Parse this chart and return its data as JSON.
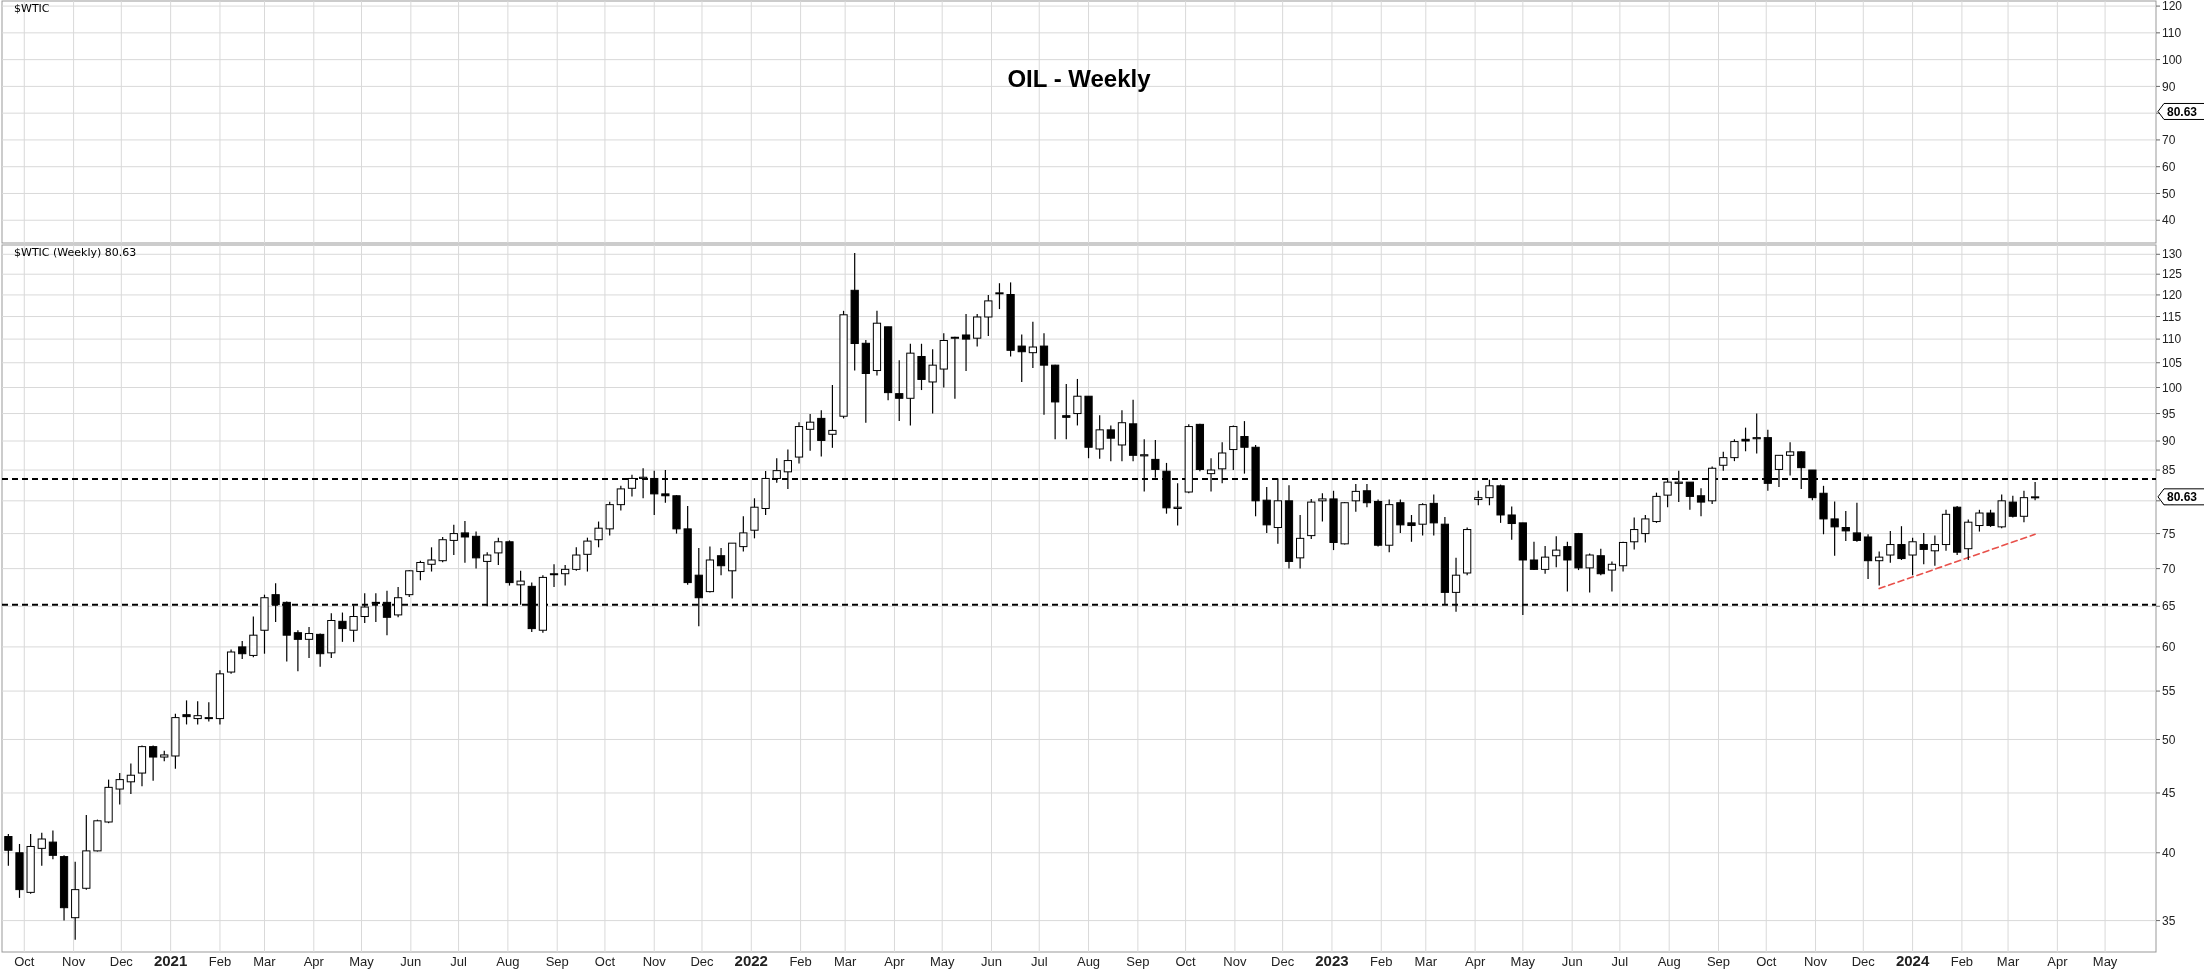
{
  "chart_data": [
    {
      "type": "line",
      "title": "OIL - Weekly",
      "annotations": [
        "$WTIC",
        "80.63"
      ],
      "ylim": [
        31.5,
        121.9
      ],
      "yticks": [
        40,
        50,
        60,
        70,
        {
          "value": 80,
          "label": null
        },
        90,
        100,
        110,
        120
      ],
      "xlim": [
        "2020-09-17",
        "2024-06-02"
      ],
      "xticks": [
        {
          "value": "2020-10-01",
          "label": null
        },
        {
          "value": "2020-11-01",
          "label": null
        },
        {
          "value": "2020-12-01",
          "label": null
        },
        {
          "value": "2021-01-01",
          "label": null
        },
        {
          "value": "2021-02-01",
          "label": null
        },
        {
          "value": "2021-03-01",
          "label": null
        },
        {
          "value": "2021-04-01",
          "label": null
        },
        {
          "value": "2021-05-01",
          "label": null
        },
        {
          "value": "2021-06-01",
          "label": null
        },
        {
          "value": "2021-07-01",
          "label": null
        },
        {
          "value": "2021-08-01",
          "label": null
        },
        {
          "value": "2021-09-01",
          "label": null
        },
        {
          "value": "2021-10-01",
          "label": null
        },
        {
          "value": "2021-11-01",
          "label": null
        },
        {
          "value": "2021-12-01",
          "label": null
        },
        {
          "value": "2022-01-01",
          "label": null
        },
        {
          "value": "2022-02-01",
          "label": null
        },
        {
          "value": "2022-03-01",
          "label": null
        },
        {
          "value": "2022-04-01",
          "label": null
        },
        {
          "value": "2022-05-01",
          "label": null
        },
        {
          "value": "2022-06-01",
          "label": null
        },
        {
          "value": "2022-07-01",
          "label": null
        },
        {
          "value": "2022-08-01",
          "label": null
        },
        {
          "value": "2022-09-01",
          "label": null
        },
        {
          "value": "2022-10-01",
          "label": null
        },
        {
          "value": "2022-11-01",
          "label": null
        },
        {
          "value": "2022-12-01",
          "label": null
        },
        {
          "value": "2023-01-01",
          "label": null
        },
        {
          "value": "2023-02-01",
          "label": null
        },
        {
          "value": "2023-03-01",
          "label": null
        },
        {
          "value": "2023-04-01",
          "label": null
        },
        {
          "value": "2023-05-01",
          "label": null
        },
        {
          "value": "2023-06-01",
          "label": null
        },
        {
          "value": "2023-07-01",
          "label": null
        },
        {
          "value": "2023-08-01",
          "label": null
        },
        {
          "value": "2023-09-01",
          "label": null
        },
        {
          "value": "2023-10-01",
          "label": null
        },
        {
          "value": "2023-11-01",
          "label": null
        },
        {
          "value": "2023-12-01",
          "label": null
        },
        {
          "value": "2024-01-01",
          "label": null
        },
        {
          "value": "2024-02-01",
          "label": null
        },
        {
          "value": "2024-03-01",
          "label": null
        },
        {
          "value": "2024-04-01",
          "label": null
        },
        {
          "value": "2024-05-01",
          "label": null
        }
      ],
      "tick_labels": "y",
      "grid": true
    },
    {
      "type": "candlestick",
      "log": true,
      "grid": true,
      "annotations": [
        "$WTIC (Weekly) 80.63",
        "80.63"
      ],
      "ylim": [
        32.9,
        132.4
      ],
      "yticks": [
        35,
        40,
        45,
        50,
        55,
        60,
        65,
        70,
        75,
        80,
        85,
        90,
        95,
        100,
        105,
        110,
        115,
        120,
        125,
        130
      ],
      "xlim": [
        "2020-09-17",
        "2024-06-02"
      ],
      "xticks": [
        {
          "value": "2020-10-01",
          "label": "Oct"
        },
        {
          "value": "2020-11-01",
          "label": "Nov"
        },
        {
          "value": "2020-12-01",
          "label": "Dec"
        },
        {
          "value": "2021-01-01",
          "label": "2021"
        },
        {
          "value": "2021-02-01",
          "label": "Feb"
        },
        {
          "value": "2021-03-01",
          "label": "Mar"
        },
        {
          "value": "2021-04-01",
          "label": "Apr"
        },
        {
          "value": "2021-05-01",
          "label": "May"
        },
        {
          "value": "2021-06-01",
          "label": "Jun"
        },
        {
          "value": "2021-07-01",
          "label": "Jul"
        },
        {
          "value": "2021-08-01",
          "label": "Aug"
        },
        {
          "value": "2021-09-01",
          "label": "Sep"
        },
        {
          "value": "2021-10-01",
          "label": "Oct"
        },
        {
          "value": "2021-11-01",
          "label": "Nov"
        },
        {
          "value": "2021-12-01",
          "label": "Dec"
        },
        {
          "value": "2022-01-01",
          "label": "2022"
        },
        {
          "value": "2022-02-01",
          "label": "Feb"
        },
        {
          "value": "2022-03-01",
          "label": "Mar"
        },
        {
          "value": "2022-04-01",
          "label": "Apr"
        },
        {
          "value": "2022-05-01",
          "label": "May"
        },
        {
          "value": "2022-06-01",
          "label": "Jun"
        },
        {
          "value": "2022-07-01",
          "label": "Jul"
        },
        {
          "value": "2022-08-01",
          "label": "Aug"
        },
        {
          "value": "2022-09-01",
          "label": "Sep"
        },
        {
          "value": "2022-10-01",
          "label": "Oct"
        },
        {
          "value": "2022-11-01",
          "label": "Nov"
        },
        {
          "value": "2022-12-01",
          "label": "Dec"
        },
        {
          "value": "2023-01-01",
          "label": "2023"
        },
        {
          "value": "2023-02-01",
          "label": "Feb"
        },
        {
          "value": "2023-03-01",
          "label": "Mar"
        },
        {
          "value": "2023-04-01",
          "label": "Apr"
        },
        {
          "value": "2023-05-01",
          "label": "May"
        },
        {
          "value": "2023-06-01",
          "label": "Jun"
        },
        {
          "value": "2023-07-01",
          "label": "Jul"
        },
        {
          "value": "2023-08-01",
          "label": "Aug"
        },
        {
          "value": "2023-09-01",
          "label": "Sep"
        },
        {
          "value": "2023-10-01",
          "label": "Oct"
        },
        {
          "value": "2023-11-01",
          "label": "Nov"
        },
        {
          "value": "2023-12-01",
          "label": "Dec"
        },
        {
          "value": "2024-01-01",
          "label": "2024"
        },
        {
          "value": "2024-02-01",
          "label": "Feb"
        },
        {
          "value": "2024-03-01",
          "label": "Mar"
        },
        {
          "value": "2024-04-01",
          "label": "Apr"
        },
        {
          "value": "2024-05-01",
          "label": "May"
        }
      ],
      "ref_lines": [
        {
          "axis": "y",
          "value": 83.5,
          "color": "#000000",
          "line_style": "dashed"
        },
        {
          "axis": "y",
          "value": 65.2,
          "color": "#000000",
          "line_style": "dashed"
        }
      ],
      "series": [
        {
          "type": "line",
          "x": [
            "2023-12-11",
            "2024-03-18"
          ],
          "values": [
            67.3,
            74.9
          ],
          "color": "#e8504a",
          "line_style": "dashed"
        }
      ],
      "x": [
        "2020-09-21",
        "2020-09-28",
        "2020-10-05",
        "2020-10-12",
        "2020-10-19",
        "2020-10-26",
        "2020-11-02",
        "2020-11-09",
        "2020-11-16",
        "2020-11-23",
        "2020-11-30",
        "2020-12-07",
        "2020-12-14",
        "2020-12-21",
        "2020-12-28",
        "2021-01-04",
        "2021-01-11",
        "2021-01-18",
        "2021-01-25",
        "2021-02-01",
        "2021-02-08",
        "2021-02-15",
        "2021-02-22",
        "2021-03-01",
        "2021-03-08",
        "2021-03-15",
        "2021-03-22",
        "2021-03-29",
        "2021-04-05",
        "2021-04-12",
        "2021-04-19",
        "2021-04-26",
        "2021-05-03",
        "2021-05-10",
        "2021-05-17",
        "2021-05-24",
        "2021-05-31",
        "2021-06-07",
        "2021-06-14",
        "2021-06-21",
        "2021-06-28",
        "2021-07-05",
        "2021-07-12",
        "2021-07-19",
        "2021-07-26",
        "2021-08-02",
        "2021-08-09",
        "2021-08-16",
        "2021-08-23",
        "2021-08-30",
        "2021-09-06",
        "2021-09-13",
        "2021-09-20",
        "2021-09-27",
        "2021-10-04",
        "2021-10-11",
        "2021-10-18",
        "2021-10-25",
        "2021-11-01",
        "2021-11-08",
        "2021-11-15",
        "2021-11-22",
        "2021-11-29",
        "2021-12-06",
        "2021-12-13",
        "2021-12-20",
        "2021-12-27",
        "2022-01-03",
        "2022-01-10",
        "2022-01-17",
        "2022-01-24",
        "2022-01-31",
        "2022-02-07",
        "2022-02-14",
        "2022-02-21",
        "2022-02-28",
        "2022-03-07",
        "2022-03-14",
        "2022-03-21",
        "2022-03-28",
        "2022-04-04",
        "2022-04-11",
        "2022-04-18",
        "2022-04-25",
        "2022-05-02",
        "2022-05-09",
        "2022-05-16",
        "2022-05-23",
        "2022-05-30",
        "2022-06-06",
        "2022-06-13",
        "2022-06-20",
        "2022-06-27",
        "2022-07-04",
        "2022-07-11",
        "2022-07-18",
        "2022-07-25",
        "2022-08-01",
        "2022-08-08",
        "2022-08-15",
        "2022-08-22",
        "2022-08-29",
        "2022-09-05",
        "2022-09-12",
        "2022-09-19",
        "2022-09-26",
        "2022-10-03",
        "2022-10-10",
        "2022-10-17",
        "2022-10-24",
        "2022-10-31",
        "2022-11-07",
        "2022-11-14",
        "2022-11-21",
        "2022-11-28",
        "2022-12-05",
        "2022-12-12",
        "2022-12-19",
        "2022-12-26",
        "2023-01-02",
        "2023-01-09",
        "2023-01-16",
        "2023-01-23",
        "2023-01-30",
        "2023-02-06",
        "2023-02-13",
        "2023-02-20",
        "2023-02-27",
        "2023-03-06",
        "2023-03-13",
        "2023-03-20",
        "2023-03-27",
        "2023-04-03",
        "2023-04-10",
        "2023-04-17",
        "2023-04-24",
        "2023-05-01",
        "2023-05-08",
        "2023-05-15",
        "2023-05-22",
        "2023-05-29",
        "2023-06-05",
        "2023-06-12",
        "2023-06-19",
        "2023-06-26",
        "2023-07-03",
        "2023-07-10",
        "2023-07-17",
        "2023-07-24",
        "2023-07-31",
        "2023-08-07",
        "2023-08-14",
        "2023-08-21",
        "2023-08-28",
        "2023-09-04",
        "2023-09-11",
        "2023-09-18",
        "2023-09-25",
        "2023-10-02",
        "2023-10-09",
        "2023-10-16",
        "2023-10-23",
        "2023-10-30",
        "2023-11-06",
        "2023-11-13",
        "2023-11-20",
        "2023-11-27",
        "2023-12-04",
        "2023-12-11",
        "2023-12-18",
        "2023-12-25",
        "2024-01-01",
        "2024-01-08",
        "2024-01-15",
        "2024-01-22",
        "2024-01-29",
        "2024-02-05",
        "2024-02-12",
        "2024-02-19",
        "2024-02-26",
        "2024-03-04",
        "2024-03-11",
        "2024-03-18"
      ],
      "ohlc": [
        [
          41.3,
          41.5,
          39.0,
          40.2
        ],
        [
          40.0,
          40.7,
          36.6,
          37.2
        ],
        [
          37.0,
          41.5,
          36.9,
          40.5
        ],
        [
          40.35,
          41.6,
          39.0,
          41.1
        ],
        [
          40.85,
          41.8,
          39.5,
          39.8
        ],
        [
          39.7,
          39.8,
          35.0,
          35.9
        ],
        [
          35.2,
          39.3,
          33.7,
          37.2
        ],
        [
          37.3,
          43.1,
          37.2,
          40.15
        ],
        [
          40.15,
          42.7,
          40.1,
          42.6
        ],
        [
          42.5,
          46.2,
          42.4,
          45.5
        ],
        [
          45.35,
          46.8,
          44.0,
          46.2
        ],
        [
          46.0,
          47.7,
          44.9,
          46.6
        ],
        [
          46.8,
          49.4,
          45.6,
          49.3
        ],
        [
          49.3,
          49.4,
          46.1,
          48.3
        ],
        [
          48.3,
          48.9,
          47.9,
          48.5
        ],
        [
          48.4,
          52.6,
          47.2,
          52.2
        ],
        [
          52.5,
          54.0,
          51.5,
          52.3
        ],
        [
          52.1,
          53.9,
          51.5,
          52.4
        ],
        [
          52.1,
          53.8,
          51.8,
          52.2
        ],
        [
          52.1,
          57.3,
          51.5,
          56.9
        ],
        [
          57.1,
          59.7,
          56.9,
          59.4
        ],
        [
          60.0,
          60.7,
          58.6,
          59.2
        ],
        [
          59.0,
          63.7,
          58.8,
          61.4
        ],
        [
          62.0,
          66.5,
          59.2,
          66.1
        ],
        [
          66.5,
          68.0,
          63.0,
          65.2
        ],
        [
          65.5,
          65.6,
          58.3,
          61.4
        ],
        [
          61.7,
          62.0,
          57.2,
          60.9
        ],
        [
          60.9,
          62.4,
          58.7,
          61.6
        ],
        [
          61.5,
          61.6,
          57.7,
          59.2
        ],
        [
          59.3,
          64.1,
          58.7,
          63.2
        ],
        [
          63.1,
          64.2,
          60.6,
          62.2
        ],
        [
          62.0,
          65.1,
          60.6,
          63.7
        ],
        [
          63.7,
          66.7,
          62.9,
          64.9
        ],
        [
          65.5,
          66.7,
          63.0,
          65.4
        ],
        [
          65.5,
          67.0,
          61.4,
          63.6
        ],
        [
          63.9,
          67.5,
          63.6,
          66.1
        ],
        [
          66.5,
          69.8,
          66.2,
          69.7
        ],
        [
          69.6,
          71.1,
          68.4,
          70.85
        ],
        [
          70.6,
          73.0,
          69.6,
          71.2
        ],
        [
          71.1,
          74.5,
          70.9,
          74.1
        ],
        [
          74.0,
          76.3,
          71.9,
          75.0
        ],
        [
          75.1,
          76.9,
          70.8,
          74.5
        ],
        [
          74.6,
          75.3,
          70.0,
          71.5
        ],
        [
          71.0,
          72.3,
          65.0,
          71.9
        ],
        [
          72.2,
          74.4,
          70.5,
          73.8
        ],
        [
          73.8,
          74.0,
          67.7,
          68.1
        ],
        [
          67.8,
          69.7,
          65.2,
          68.3
        ],
        [
          67.6,
          68.1,
          61.8,
          62.2
        ],
        [
          62.0,
          69.1,
          61.7,
          68.8
        ],
        [
          69.2,
          70.6,
          67.5,
          69.3
        ],
        [
          69.3,
          70.5,
          67.7,
          69.9
        ],
        [
          69.9,
          73.0,
          69.7,
          71.9
        ],
        [
          72.0,
          74.4,
          69.6,
          73.9
        ],
        [
          74.1,
          76.8,
          73.0,
          75.8
        ],
        [
          75.7,
          79.85,
          74.7,
          79.4
        ],
        [
          79.4,
          82.4,
          78.5,
          81.9
        ],
        [
          82.0,
          84.2,
          80.7,
          83.6
        ],
        [
          83.6,
          85.3,
          80.4,
          83.8
        ],
        [
          83.6,
          84.9,
          77.8,
          81.1
        ],
        [
          81.1,
          85.0,
          79.7,
          80.8
        ],
        [
          80.8,
          80.9,
          75.0,
          75.7
        ],
        [
          75.7,
          79.2,
          67.8,
          68.1
        ],
        [
          69.1,
          72.9,
          62.5,
          66.1
        ],
        [
          66.9,
          73.1,
          66.8,
          71.2
        ],
        [
          71.8,
          72.9,
          69.1,
          70.4
        ],
        [
          69.7,
          73.6,
          66.0,
          73.6
        ],
        [
          73.1,
          77.6,
          72.4,
          75.1
        ],
        [
          75.5,
          80.4,
          74.3,
          79.0
        ],
        [
          78.8,
          84.85,
          77.8,
          83.6
        ],
        [
          83.6,
          87.0,
          82.9,
          84.9
        ],
        [
          84.7,
          88.5,
          81.9,
          86.6
        ],
        [
          87.2,
          93.4,
          86.1,
          92.6
        ],
        [
          92.1,
          94.9,
          88.3,
          93.4
        ],
        [
          94.1,
          95.6,
          87.3,
          90.1
        ],
        [
          91.2,
          100.5,
          88.8,
          91.9
        ],
        [
          94.5,
          116.3,
          94.1,
          115.4
        ],
        [
          121.1,
          130.3,
          103.4,
          109.05
        ],
        [
          109.1,
          109.8,
          93.3,
          102.8
        ],
        [
          103.4,
          116.3,
          102.4,
          113.5
        ],
        [
          112.7,
          112.7,
          97.5,
          99.0
        ],
        [
          98.8,
          105.5,
          93.6,
          97.9
        ],
        [
          97.9,
          109.0,
          92.8,
          107.0
        ],
        [
          106.3,
          109.0,
          99.5,
          101.6
        ],
        [
          101.1,
          107.8,
          95.0,
          104.5
        ],
        [
          103.7,
          111.3,
          100.0,
          109.7
        ],
        [
          110.2,
          110.5,
          97.8,
          110.4
        ],
        [
          110.9,
          115.6,
          103.3,
          110.0
        ],
        [
          110.2,
          115.6,
          108.4,
          114.9
        ],
        [
          114.9,
          120.0,
          110.7,
          118.6
        ],
        [
          120.4,
          122.8,
          116.7,
          120.5
        ],
        [
          120.1,
          123.0,
          106.3,
          107.6
        ],
        [
          108.5,
          111.0,
          101.1,
          107.3
        ],
        [
          107.1,
          113.8,
          103.9,
          108.3
        ],
        [
          108.5,
          111.3,
          94.8,
          104.5
        ],
        [
          104.5,
          104.6,
          90.3,
          97.2
        ],
        [
          94.6,
          100.7,
          90.3,
          94.3
        ],
        [
          95.0,
          101.7,
          92.8,
          98.3
        ],
        [
          98.3,
          98.3,
          87.0,
          88.9
        ],
        [
          88.6,
          94.7,
          86.9,
          92.0
        ],
        [
          92.0,
          92.8,
          86.5,
          90.5
        ],
        [
          89.3,
          95.6,
          86.5,
          93.3
        ],
        [
          93.1,
          97.6,
          86.5,
          87.5
        ],
        [
          87.4,
          90.3,
          81.5,
          87.6
        ],
        [
          86.8,
          90.2,
          83.7,
          85.1
        ],
        [
          84.8,
          86.2,
          78.0,
          78.9
        ],
        [
          78.8,
          82.8,
          76.2,
          79.0
        ],
        [
          81.4,
          93.0,
          81.2,
          92.6
        ],
        [
          93.0,
          93.1,
          84.8,
          85.1
        ],
        [
          84.4,
          87.0,
          81.5,
          85.0
        ],
        [
          85.2,
          89.8,
          82.8,
          87.9
        ],
        [
          88.5,
          92.8,
          85.0,
          92.6
        ],
        [
          90.8,
          93.6,
          84.4,
          88.9
        ],
        [
          88.9,
          89.3,
          77.6,
          80.0
        ],
        [
          80.1,
          82.2,
          75.1,
          76.3
        ],
        [
          75.9,
          83.6,
          73.5,
          80.0
        ],
        [
          80.0,
          82.5,
          70.0,
          71.0
        ],
        [
          71.5,
          77.8,
          70.0,
          74.3
        ],
        [
          74.7,
          80.3,
          74.2,
          79.8
        ],
        [
          80.0,
          81.2,
          76.8,
          80.3
        ],
        [
          80.3,
          81.6,
          72.6,
          73.7
        ],
        [
          73.5,
          79.8,
          73.4,
          79.7
        ],
        [
          80.0,
          82.7,
          78.3,
          81.5
        ],
        [
          81.6,
          82.7,
          79.0,
          79.7
        ],
        [
          79.9,
          80.2,
          73.1,
          73.3
        ],
        [
          73.3,
          80.2,
          72.3,
          79.4
        ],
        [
          79.7,
          80.2,
          75.1,
          76.3
        ],
        [
          76.6,
          77.8,
          73.8,
          76.2
        ],
        [
          76.4,
          79.6,
          74.7,
          79.4
        ],
        [
          79.6,
          81.0,
          74.7,
          76.6
        ],
        [
          76.4,
          77.5,
          65.3,
          66.8
        ],
        [
          66.8,
          71.5,
          64.3,
          69.1
        ],
        [
          69.4,
          75.9,
          69.1,
          75.6
        ],
        [
          80.2,
          81.6,
          79.3,
          80.5
        ],
        [
          80.5,
          83.4,
          79.3,
          82.4
        ],
        [
          82.4,
          82.6,
          76.6,
          77.8
        ],
        [
          77.8,
          79.1,
          74.1,
          76.5
        ],
        [
          76.6,
          76.6,
          63.9,
          71.2
        ],
        [
          71.2,
          73.8,
          69.8,
          69.9
        ],
        [
          69.9,
          73.2,
          69.3,
          71.6
        ],
        [
          71.8,
          74.6,
          70.2,
          72.6
        ],
        [
          73.1,
          73.8,
          66.9,
          71.2
        ],
        [
          75.0,
          75.1,
          69.8,
          70.1
        ],
        [
          70.1,
          72.1,
          66.8,
          71.9
        ],
        [
          71.8,
          72.8,
          69.1,
          69.3
        ],
        [
          69.8,
          71.0,
          66.9,
          70.6
        ],
        [
          70.4,
          73.8,
          69.6,
          73.7
        ],
        [
          73.8,
          77.4,
          72.7,
          75.6
        ],
        [
          75.0,
          77.8,
          73.7,
          77.2
        ],
        [
          76.8,
          81.3,
          76.6,
          80.7
        ],
        [
          80.9,
          83.6,
          79.0,
          83.0
        ],
        [
          82.8,
          84.9,
          79.8,
          83.0
        ],
        [
          83.0,
          83.0,
          78.6,
          80.7
        ],
        [
          80.8,
          82.0,
          77.6,
          79.8
        ],
        [
          80.0,
          85.6,
          79.5,
          85.3
        ],
        [
          85.8,
          88.1,
          84.9,
          87.1
        ],
        [
          87.1,
          90.3,
          86.5,
          89.9
        ],
        [
          90.3,
          92.4,
          88.2,
          90.0
        ],
        [
          90.4,
          95.0,
          87.8,
          90.6
        ],
        [
          90.6,
          92.0,
          81.6,
          82.8
        ],
        [
          85.1,
          87.5,
          82.2,
          87.5
        ],
        [
          87.5,
          89.8,
          84.1,
          88.1
        ],
        [
          88.1,
          88.2,
          81.9,
          85.4
        ],
        [
          85.0,
          85.0,
          80.1,
          80.5
        ],
        [
          81.2,
          82.4,
          74.9,
          77.2
        ],
        [
          77.2,
          79.9,
          71.8,
          76.0
        ],
        [
          75.9,
          78.4,
          73.9,
          75.4
        ],
        [
          75.1,
          79.7,
          73.8,
          74.0
        ],
        [
          74.5,
          74.9,
          68.6,
          71.1
        ],
        [
          71.1,
          72.4,
          67.7,
          71.6
        ],
        [
          71.9,
          75.4,
          70.8,
          73.4
        ],
        [
          73.4,
          76.1,
          71.2,
          71.4
        ],
        [
          71.9,
          74.4,
          69.1,
          73.8
        ],
        [
          73.4,
          75.1,
          70.6,
          72.7
        ],
        [
          72.5,
          74.7,
          70.4,
          73.4
        ],
        [
          73.4,
          78.6,
          72.5,
          77.9
        ],
        [
          79.0,
          79.2,
          71.9,
          72.3
        ],
        [
          72.8,
          77.1,
          71.2,
          76.7
        ],
        [
          76.2,
          78.6,
          75.3,
          78.1
        ],
        [
          78.1,
          78.6,
          76.0,
          76.2
        ],
        [
          76.0,
          81.0,
          75.8,
          80.0
        ],
        [
          79.8,
          80.8,
          77.4,
          77.6
        ],
        [
          77.6,
          81.6,
          76.7,
          80.5
        ],
        [
          80.5,
          83.0,
          80.1,
          80.63
        ]
      ]
    }
  ]
}
